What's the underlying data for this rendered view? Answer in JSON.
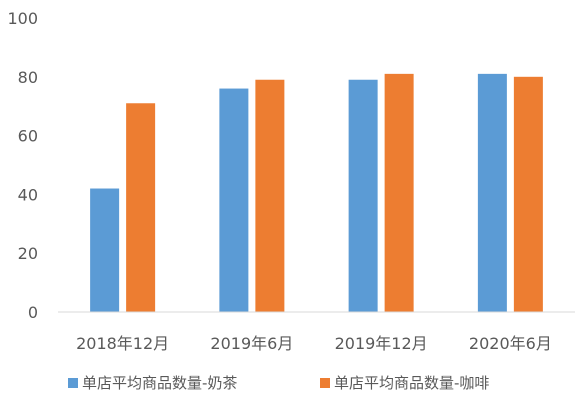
{
  "chart_data": {
    "type": "bar",
    "title": "",
    "xlabel": "",
    "ylabel": "",
    "categories": [
      "2018年12月",
      "2019年6月",
      "2019年12月",
      "2020年6月"
    ],
    "ylim": [
      0,
      100
    ],
    "yticks": [
      0,
      20,
      40,
      60,
      80,
      100
    ],
    "grid": false,
    "legend_position": "bottom",
    "series": [
      {
        "name": "单店平均商品数量-奶茶",
        "color": "#5b9bd5",
        "values": [
          42,
          76,
          79,
          81
        ]
      },
      {
        "name": "单店平均商品数量-咖啡",
        "color": "#ed7d31",
        "values": [
          71,
          79,
          81,
          80
        ]
      }
    ]
  }
}
